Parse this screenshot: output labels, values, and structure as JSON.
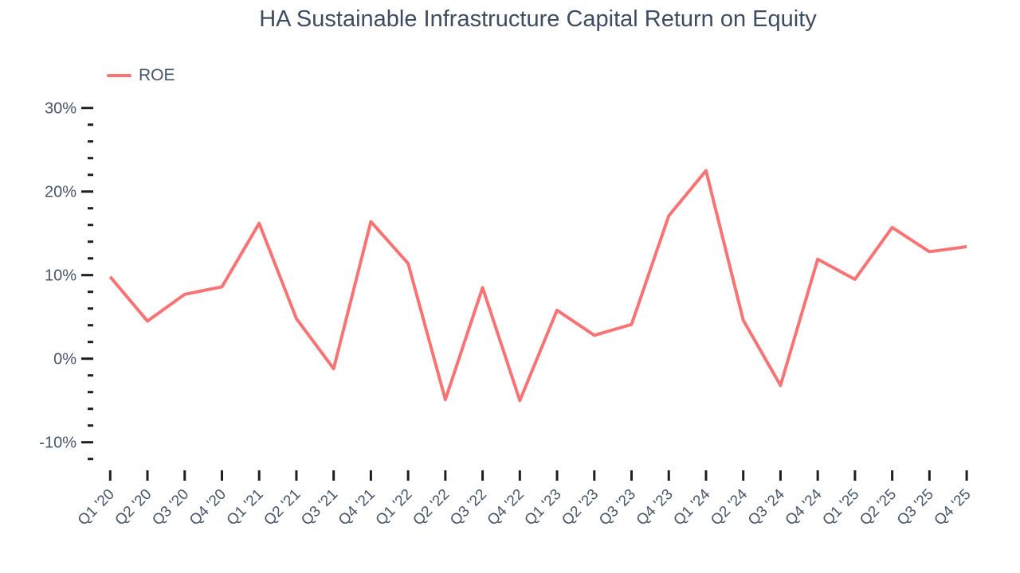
{
  "title": "HA Sustainable Infrastructure Capital Return on Equity",
  "colors": {
    "line": "#F87474",
    "title_text": "#3E4C5F",
    "axis_text": "#475569",
    "tick": "#1F1F1F"
  },
  "legend": {
    "items": [
      {
        "label": "ROE",
        "color": "#F87474"
      }
    ]
  },
  "chart_data": {
    "type": "line",
    "title": "HA Sustainable Infrastructure Capital Return on Equity",
    "xlabel": "",
    "ylabel": "",
    "grid": false,
    "legend_position": "top-left",
    "categories": [
      "Q1 '20",
      "Q2 '20",
      "Q3 '20",
      "Q4 '20",
      "Q1 '21",
      "Q2 '21",
      "Q3 '21",
      "Q4 '21",
      "Q1 '22",
      "Q2 '22",
      "Q3 '22",
      "Q4 '22",
      "Q1 '23",
      "Q2 '23",
      "Q3 '23",
      "Q4 '23",
      "Q1 '24",
      "Q2 '24",
      "Q3 '24",
      "Q4 '24",
      "Q1 '25",
      "Q2 '25",
      "Q3 '25",
      "Q4 '25"
    ],
    "series": [
      {
        "name": "ROE",
        "values": [
          9.8,
          4.5,
          7.7,
          8.6,
          16.2,
          4.8,
          -1.2,
          16.4,
          11.4,
          -4.9,
          8.5,
          -5.0,
          5.8,
          2.8,
          4.1,
          17.1,
          22.5,
          4.6,
          -3.2,
          11.9,
          9.5,
          15.7,
          12.8,
          13.4
        ]
      }
    ],
    "y_axis": {
      "unit": "%",
      "min": -12,
      "max": 30,
      "major_step": 10,
      "minor_step": 2,
      "major_tick_labels": [
        "30%",
        "20%",
        "10%",
        "0%",
        "-10%"
      ]
    }
  }
}
